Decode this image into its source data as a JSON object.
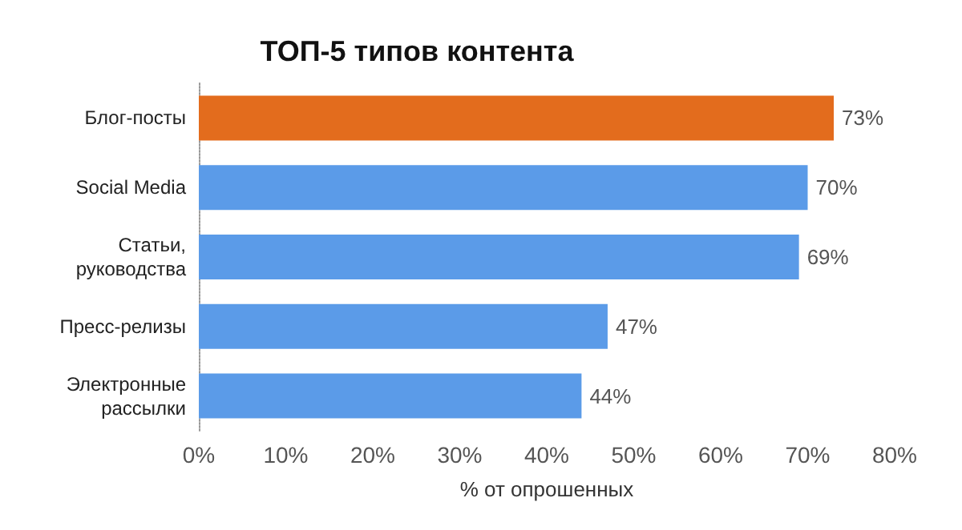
{
  "chart_data": {
    "type": "bar",
    "orientation": "horizontal",
    "title": "ТОП-5 типов контента",
    "xlabel": "% от опрошенных",
    "categories": [
      "Блог-посты",
      "Social Media",
      "Статьи, руководства",
      "Пресс-релизы",
      "Электронные рассылки"
    ],
    "values": [
      73,
      70,
      69,
      47,
      44
    ],
    "colors": [
      "#e36c1d",
      "#5b9be8",
      "#5b9be8",
      "#5b9be8",
      "#5b9be8"
    ],
    "value_labels": [
      "73%",
      "70%",
      "69%",
      "47%",
      "44%"
    ],
    "xlim": [
      0,
      80
    ],
    "xticks": [
      {
        "value": 0,
        "label": "0%"
      },
      {
        "value": 10,
        "label": "10%"
      },
      {
        "value": 20,
        "label": "20%"
      },
      {
        "value": 30,
        "label": "30%"
      },
      {
        "value": 40,
        "label": "40%"
      },
      {
        "value": 50,
        "label": "50%"
      },
      {
        "value": 60,
        "label": "60%"
      },
      {
        "value": 70,
        "label": "70%"
      },
      {
        "value": 80,
        "label": "80%"
      }
    ],
    "grid": false
  }
}
